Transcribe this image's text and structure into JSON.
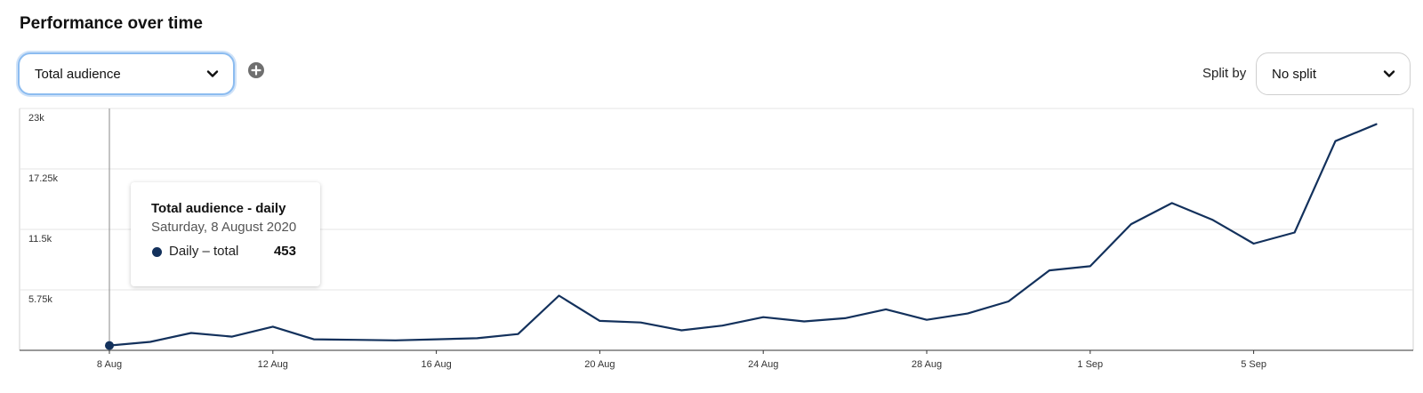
{
  "header": {
    "title": "Performance over time"
  },
  "metric_select": {
    "value": "Total audience"
  },
  "split": {
    "label": "Split by",
    "value": "No split"
  },
  "tooltip": {
    "title": "Total audience - daily",
    "date": "Saturday, 8 August 2020",
    "series_label": "Daily – total",
    "value": "453"
  },
  "colors": {
    "line": "#13315c",
    "focus_border": "#8cbcf0",
    "grid": "#e6e6e6"
  },
  "chart_data": {
    "type": "line",
    "title": "",
    "xlabel": "",
    "ylabel": "",
    "ylim": [
      0,
      23000
    ],
    "yticks": [
      5750,
      11500,
      17250,
      23000
    ],
    "ytick_labels": [
      "5.75k",
      "11.5k",
      "17.25k",
      "23k"
    ],
    "x_start_day": 8,
    "xticks": [
      0,
      4,
      8,
      12,
      16,
      20,
      24,
      28
    ],
    "xtick_labels": [
      "8 Aug",
      "12 Aug",
      "16 Aug",
      "20 Aug",
      "24 Aug",
      "28 Aug",
      "1 Sep",
      "5 Sep"
    ],
    "grid": true,
    "highlight_index": 0,
    "series": [
      {
        "name": "Daily – total",
        "x": [
          "8 Aug",
          "9 Aug",
          "10 Aug",
          "11 Aug",
          "12 Aug",
          "13 Aug",
          "14 Aug",
          "15 Aug",
          "16 Aug",
          "17 Aug",
          "18 Aug",
          "19 Aug",
          "20 Aug",
          "21 Aug",
          "22 Aug",
          "23 Aug",
          "24 Aug",
          "25 Aug",
          "26 Aug",
          "27 Aug",
          "28 Aug",
          "29 Aug",
          "30 Aug",
          "31 Aug",
          "1 Sep",
          "2 Sep",
          "3 Sep",
          "4 Sep",
          "5 Sep",
          "6 Sep",
          "7 Sep",
          "8 Sep"
        ],
        "values": [
          453,
          800,
          1650,
          1300,
          2250,
          1050,
          1000,
          950,
          1050,
          1150,
          1550,
          5200,
          2800,
          2650,
          1900,
          2350,
          3150,
          2750,
          3050,
          3900,
          2900,
          3500,
          4650,
          7600,
          8000,
          12000,
          14000,
          12400,
          10150,
          11200,
          19900,
          21500
        ]
      }
    ]
  }
}
